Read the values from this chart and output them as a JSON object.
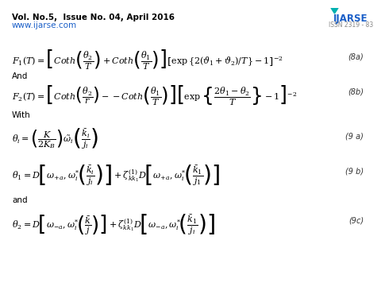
{
  "header_left_line1": "Vol. No.5,  Issue No. 04, April 2016",
  "header_left_line2": "www.ijarse.com",
  "header_right_line1": "IJARSE",
  "header_right_line2": "ISSN 2319 - 83",
  "bg_color": "#ffffff",
  "eq_color": "#000000",
  "eq8a": "$F_1(T) = \\left[Coth\\left(\\dfrac{\\theta_2}{T}\\right) + Coth\\left(\\dfrac{\\theta_1}{T}\\right)\\right]\\left[\\exp\\{2(\\vartheta_1 + \\vartheta_2)/T\\} - 1\\right]^{-2}$",
  "eq8b": "$F_2(T) = \\left[Coth\\left(\\dfrac{\\theta_2}{r}\\right) - {-}Coth\\left(\\dfrac{\\theta_1}{T}\\right)\\right]\\left[\\exp\\left\\{\\dfrac{2\\theta_1 - \\theta_2}{T}\\right\\} - 1\\right]^{-2}$",
  "eq9a": "$\\theta_i = \\left(\\dfrac{K}{2K_B}\\right)\\omega_i^{\\sim}\\left(\\dfrac{\\bar{k}_i}{j_i}\\right)$",
  "eq9b": "$\\theta_1 = D\\!\\left[\\omega_{+a},\\omega_i^{*}\\!\\left(\\dfrac{\\bar{k}_i}{j_i}\\right)\\right] + \\zeta^{(1)}_{kk_1} D\\!\\left[\\omega_{+a},\\omega_i^{*}\\!\\left(\\dfrac{\\bar{k}_1}{j_1}\\right)\\right]$",
  "eq9c": "$\\theta_2 = D\\!\\left[\\omega_{-a},\\omega_i^{*}\\!\\left(\\dfrac{\\bar{k}}{j}\\right)\\right] + \\zeta^{(1)}_{kk_1} D\\!\\left[\\omega_{-a},\\omega_i^{*}\\!\\left(\\dfrac{\\bar{k}_1}{j_i}\\right)\\right]$",
  "label8a": "(8a)",
  "label8b": "(8b)",
  "label9a": "(9 a)",
  "label9b": "(9 b)",
  "label9c": "(9c)"
}
